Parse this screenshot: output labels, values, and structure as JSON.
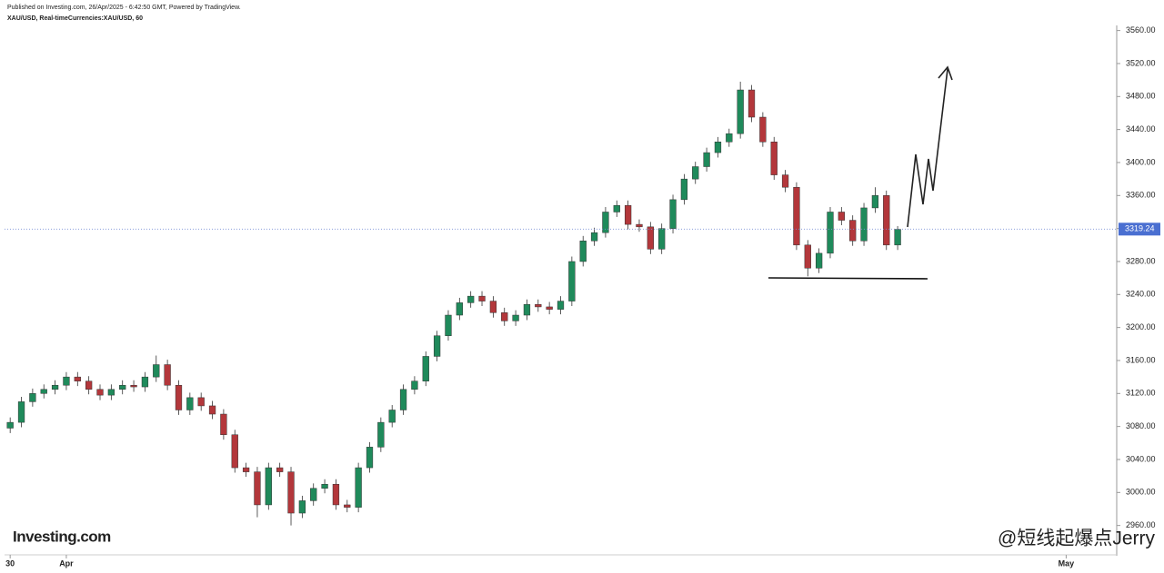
{
  "chart_data": {
    "type": "candlestick",
    "publisher_note": "Published on Investing.com, 26/Apr/2025 - 6:42:50 GMT, Powered by TradingView.",
    "title": "XAU/USD, Real-timeCurrencies:XAU/USD, 60",
    "logo": "Investing.com",
    "watermark": "@短线起爆点Jerry",
    "up_color": "#1f8a5b",
    "down_color": "#b3373b",
    "last_price": 3319.24,
    "ylim": [
      2931,
      3564
    ],
    "yticks": [
      {
        "value": 2960,
        "label": "2960.00"
      },
      {
        "value": 3000,
        "label": "3000.00"
      },
      {
        "value": 3040,
        "label": "3040.00"
      },
      {
        "value": 3080,
        "label": "3080.00"
      },
      {
        "value": 3120,
        "label": "3120.00"
      },
      {
        "value": 3160,
        "label": "3160.00"
      },
      {
        "value": 3200,
        "label": "3200.00"
      },
      {
        "value": 3240,
        "label": "3240.00"
      },
      {
        "value": 3280,
        "label": "3280.00"
      },
      {
        "value": 3320,
        "label": "3320.00"
      },
      {
        "value": 3360,
        "label": "3360.00"
      },
      {
        "value": 3400,
        "label": "3400.00"
      },
      {
        "value": 3440,
        "label": "3440.00"
      },
      {
        "value": 3480,
        "label": "3480.00"
      },
      {
        "value": 3520,
        "label": "3520.00"
      },
      {
        "value": 3560,
        "label": "3560.00"
      }
    ],
    "xlim": [
      -0.5,
      98.5
    ],
    "xticks": [
      {
        "value": 0,
        "label": "30"
      },
      {
        "value": 5,
        "label": "Apr"
      },
      {
        "value": 94,
        "label": "May"
      }
    ],
    "open": [
      3078,
      3085,
      3110,
      3120,
      3125,
      3130,
      3140,
      3135,
      3125,
      3118,
      3125,
      3130,
      3128,
      3140,
      3155,
      3130,
      3100,
      3115,
      3105,
      3095,
      3070,
      3030,
      3025,
      2985,
      3030,
      3025,
      2975,
      2990,
      3005,
      3010,
      2985,
      2982,
      3030,
      3055,
      3085,
      3100,
      3125,
      3135,
      3165,
      3190,
      3215,
      3230,
      3238,
      3232,
      3218,
      3208,
      3215,
      3228,
      3225,
      3222,
      3232,
      3280,
      3305,
      3315,
      3340,
      3348,
      3325,
      3322,
      3295,
      3320,
      3355,
      3380,
      3395,
      3412,
      3425,
      3435,
      3488,
      3455,
      3425,
      3385,
      3370,
      3300,
      3272,
      3290,
      3340,
      3330,
      3305,
      3345,
      3360,
      3300
    ],
    "high": [
      3091,
      3116,
      3126,
      3131,
      3136,
      3146,
      3146,
      3141,
      3131,
      3131,
      3136,
      3136,
      3146,
      3166,
      3161,
      3136,
      3121,
      3121,
      3111,
      3101,
      3076,
      3036,
      3031,
      3036,
      3036,
      3031,
      2996,
      3011,
      3016,
      3016,
      2991,
      3036,
      3061,
      3091,
      3106,
      3131,
      3141,
      3171,
      3196,
      3221,
      3236,
      3244,
      3244,
      3238,
      3224,
      3221,
      3234,
      3234,
      3231,
      3238,
      3286,
      3311,
      3321,
      3346,
      3354,
      3354,
      3331,
      3328,
      3326,
      3361,
      3386,
      3401,
      3418,
      3431,
      3441,
      3498,
      3494,
      3461,
      3431,
      3391,
      3376,
      3306,
      3296,
      3346,
      3346,
      3336,
      3351,
      3370,
      3366,
      3323
    ],
    "low": [
      3072,
      3079,
      3104,
      3114,
      3119,
      3124,
      3129,
      3119,
      3112,
      3112,
      3119,
      3122,
      3122,
      3134,
      3124,
      3094,
      3094,
      3099,
      3089,
      3064,
      3024,
      3019,
      2970,
      2979,
      3019,
      2960,
      2969,
      2984,
      2999,
      2979,
      2976,
      2976,
      3024,
      3049,
      3079,
      3094,
      3119,
      3129,
      3159,
      3184,
      3209,
      3224,
      3226,
      3212,
      3202,
      3202,
      3209,
      3219,
      3216,
      3216,
      3226,
      3274,
      3299,
      3309,
      3334,
      3319,
      3316,
      3289,
      3289,
      3314,
      3349,
      3374,
      3389,
      3406,
      3419,
      3429,
      3449,
      3419,
      3379,
      3364,
      3294,
      3262,
      3266,
      3284,
      3324,
      3299,
      3299,
      3339,
      3294,
      3294
    ],
    "close": [
      3085,
      3110,
      3120,
      3125,
      3130,
      3140,
      3135,
      3125,
      3118,
      3125,
      3130,
      3128,
      3140,
      3155,
      3130,
      3100,
      3115,
      3105,
      3095,
      3070,
      3030,
      3025,
      2985,
      3030,
      3025,
      2975,
      2990,
      3005,
      3010,
      2985,
      2982,
      3030,
      3055,
      3085,
      3100,
      3125,
      3135,
      3165,
      3190,
      3215,
      3230,
      3238,
      3232,
      3218,
      3208,
      3215,
      3228,
      3225,
      3222,
      3232,
      3280,
      3305,
      3315,
      3340,
      3348,
      3325,
      3322,
      3295,
      3320,
      3355,
      3380,
      3395,
      3412,
      3425,
      3435,
      3488,
      3455,
      3425,
      3385,
      3370,
      3300,
      3272,
      3290,
      3340,
      3330,
      3305,
      3345,
      3360,
      3300,
      3319
    ]
  }
}
